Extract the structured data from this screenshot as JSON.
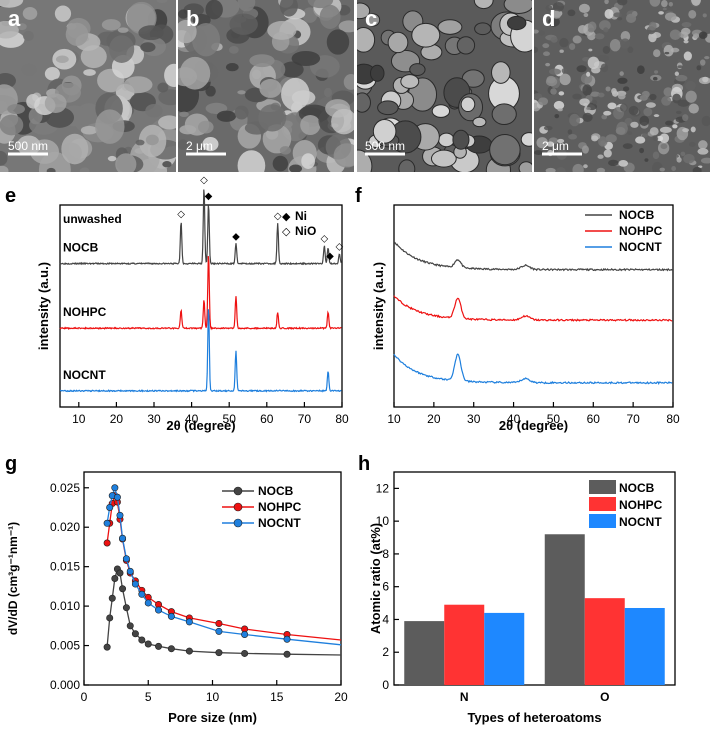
{
  "sem": {
    "panels": [
      {
        "letter": "a",
        "scale": "500 nm",
        "bg": "#777777",
        "tone": "#a8a8a8"
      },
      {
        "letter": "b",
        "scale": "2 μm",
        "bg": "#6a6a6a",
        "tone": "#9e9e9e"
      },
      {
        "letter": "c",
        "scale": "500 nm",
        "bg": "#5a5a5a",
        "tone": "#d0d0d0"
      },
      {
        "letter": "d",
        "scale": "2 μm",
        "bg": "#5e5e5e",
        "tone": "#a0a0a0"
      }
    ]
  },
  "chart_data": [
    {
      "id": "e",
      "letter": "e",
      "type": "line",
      "title": "",
      "xlabel": "2θ (degree)",
      "ylabel": "intensity (a.u.)",
      "xlim": [
        5,
        80
      ],
      "xticks": [
        10,
        20,
        30,
        40,
        50,
        60,
        70,
        80
      ],
      "note": "unwashed",
      "legend": [
        {
          "marker": "◆",
          "label": "Ni"
        },
        {
          "marker": "◇",
          "label": "NiO"
        }
      ],
      "series": [
        {
          "name": "NOCB",
          "color": "#444444",
          "offset": 0.71,
          "peaks": [
            [
              37.2,
              0.21
            ],
            [
              43.3,
              0.38
            ],
            [
              44.5,
              0.3
            ],
            [
              51.8,
              0.1
            ],
            [
              62.9,
              0.2
            ],
            [
              75.3,
              0.09
            ],
            [
              76.3,
              0.08
            ],
            [
              79.3,
              0.05
            ]
          ]
        },
        {
          "name": "NOHPC",
          "color": "#ee1111",
          "offset": 0.39,
          "peaks": [
            [
              37.2,
              0.09
            ],
            [
              43.3,
              0.14
            ],
            [
              44.5,
              0.37
            ],
            [
              51.8,
              0.16
            ],
            [
              62.9,
              0.08
            ],
            [
              76.3,
              0.08
            ]
          ]
        },
        {
          "name": "NOCNT",
          "color": "#1e7fdd",
          "offset": 0.08,
          "peaks": [
            [
              44.5,
              0.42
            ],
            [
              51.8,
              0.2
            ],
            [
              76.3,
              0.1
            ]
          ]
        }
      ],
      "markers": [
        {
          "x": 37.2,
          "symbol": "◇",
          "series": "NOCB"
        },
        {
          "x": 43.3,
          "symbol": "◇",
          "series": "NOCB"
        },
        {
          "x": 44.5,
          "symbol": "◆",
          "series": "NOCB"
        },
        {
          "x": 51.8,
          "symbol": "◆",
          "series": "NOCB"
        },
        {
          "x": 62.9,
          "symbol": "◇",
          "series": "NOCB"
        },
        {
          "x": 75.3,
          "symbol": "◇",
          "series": "NOCB"
        },
        {
          "x": 76.8,
          "symbol": "◆",
          "series": "NOCB"
        },
        {
          "x": 79.3,
          "symbol": "◇",
          "series": "NOCB"
        }
      ]
    },
    {
      "id": "f",
      "letter": "f",
      "type": "line",
      "title": "",
      "xlabel": "2θ (degree)",
      "ylabel": "intensity (a.u.)",
      "xlim": [
        10,
        80
      ],
      "xticks": [
        10,
        20,
        30,
        40,
        50,
        60,
        70,
        80
      ],
      "series": [
        {
          "name": "NOCB",
          "color": "#444444",
          "offset": 0.68,
          "hump": 0.14,
          "peak": 0.04
        },
        {
          "name": "NOHPC",
          "color": "#ee1111",
          "offset": 0.43,
          "hump": 0.12,
          "peak": 0.1
        },
        {
          "name": "NOCNT",
          "color": "#1e7fdd",
          "offset": 0.12,
          "hump": 0.14,
          "peak": 0.13
        }
      ]
    },
    {
      "id": "g",
      "letter": "g",
      "type": "line",
      "title": "",
      "xlabel": "Pore size (nm)",
      "ylabel": "dV/dD (cm³g⁻¹nm⁻¹)",
      "xlim": [
        0,
        20
      ],
      "ylim": [
        0,
        0.027
      ],
      "xticks": [
        0,
        5,
        10,
        15,
        20
      ],
      "yticks": [
        0.0,
        0.005,
        0.01,
        0.015,
        0.02,
        0.025
      ],
      "ytick_labels": [
        "0.000",
        "0.005",
        "0.010",
        "0.015",
        "0.020",
        "0.025"
      ],
      "series": [
        {
          "name": "NOCB",
          "color": "#444444",
          "x": [
            1.8,
            2.0,
            2.2,
            2.4,
            2.6,
            2.8,
            3.0,
            3.3,
            3.6,
            4.0,
            4.5,
            5.0,
            5.8,
            6.8,
            8.2,
            10.5,
            12.5,
            15.8,
            20
          ],
          "y": [
            0.0048,
            0.0085,
            0.011,
            0.0135,
            0.0147,
            0.0142,
            0.0122,
            0.0098,
            0.0075,
            0.0065,
            0.0057,
            0.0052,
            0.0049,
            0.0046,
            0.0043,
            0.0041,
            0.004,
            0.0039,
            0.0038
          ]
        },
        {
          "name": "NOHPC",
          "color": "#ee1111",
          "x": [
            1.8,
            2.0,
            2.2,
            2.4,
            2.6,
            2.8,
            3.0,
            3.3,
            3.6,
            4.0,
            4.5,
            5.0,
            5.8,
            6.8,
            8.2,
            10.5,
            12.5,
            15.8,
            20
          ],
          "y": [
            0.018,
            0.0205,
            0.023,
            0.024,
            0.0232,
            0.021,
            0.0185,
            0.0158,
            0.0142,
            0.0132,
            0.012,
            0.0111,
            0.0102,
            0.0093,
            0.0085,
            0.0078,
            0.0071,
            0.0064,
            0.0057
          ]
        },
        {
          "name": "NOCNT",
          "color": "#1e7fdd",
          "x": [
            1.8,
            2.0,
            2.2,
            2.4,
            2.6,
            2.8,
            3.0,
            3.3,
            3.6,
            4.0,
            4.5,
            5.0,
            5.8,
            6.8,
            8.2,
            10.5,
            12.5,
            15.8,
            20
          ],
          "y": [
            0.0205,
            0.0225,
            0.024,
            0.025,
            0.0238,
            0.0215,
            0.0186,
            0.016,
            0.0144,
            0.0128,
            0.0115,
            0.0104,
            0.0095,
            0.0087,
            0.008,
            0.0068,
            0.0064,
            0.0058,
            0.0051
          ]
        }
      ]
    },
    {
      "id": "h",
      "letter": "h",
      "type": "bar",
      "title": "",
      "xlabel": "Types of heteroatoms",
      "ylabel": "Atomic ratio (at%)",
      "ylim": [
        0,
        13
      ],
      "yticks": [
        0,
        2,
        4,
        6,
        8,
        10,
        12
      ],
      "categories": [
        "N",
        "O"
      ],
      "series": [
        {
          "name": "NOCB",
          "color": "#5c5c5c",
          "values": [
            3.9,
            9.2
          ]
        },
        {
          "name": "NOHPC",
          "color": "#ff3333",
          "values": [
            4.9,
            5.3
          ]
        },
        {
          "name": "NOCNT",
          "color": "#1e88ff",
          "values": [
            4.4,
            4.7
          ]
        }
      ]
    }
  ]
}
